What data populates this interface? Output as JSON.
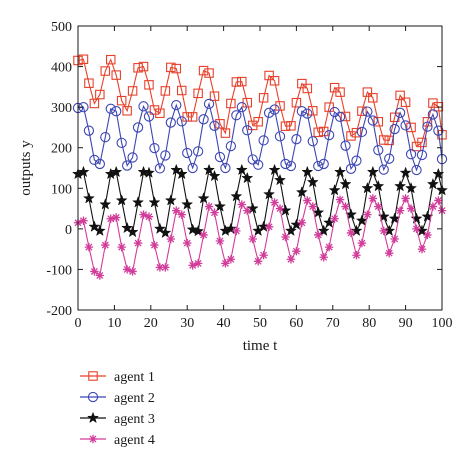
{
  "chart_data": {
    "type": "line",
    "title": "",
    "xlabel": "time t",
    "ylabel": "outputs y",
    "xlim": [
      0,
      100
    ],
    "ylim": [
      -200,
      500
    ],
    "x_ticks": [
      0,
      10,
      20,
      30,
      40,
      50,
      60,
      70,
      80,
      90,
      100
    ],
    "y_ticks": [
      -200,
      -100,
      0,
      100,
      200,
      300,
      400,
      500
    ],
    "grid": false,
    "legend_placement": "below-left",
    "series": [
      {
        "name": "agent 1",
        "color": "#e8402a",
        "marker": "square",
        "x": [
          0,
          1.5,
          3,
          4.5,
          6,
          7.5,
          9,
          10.5,
          12,
          13.5,
          15,
          16.5,
          18,
          19.5,
          21,
          22.5,
          24,
          25.5,
          27,
          28.5,
          30,
          31.5,
          33,
          34.5,
          36,
          37.5,
          39,
          40.5,
          42,
          43.5,
          45,
          46.5,
          48,
          49.5,
          51,
          52.5,
          54,
          55.5,
          57,
          58.5,
          60,
          61.5,
          63,
          64.5,
          66,
          67.5,
          69,
          70.5,
          72,
          73.5,
          75,
          76.5,
          78,
          79.5,
          81,
          82.5,
          84,
          85.5,
          87,
          88.5,
          90,
          91.5,
          93,
          94.5,
          96,
          97.5,
          99,
          100
        ],
        "y": [
          415,
          418,
          359,
          309,
          331,
          389,
          417,
          379,
          316,
          291,
          340,
          397,
          400,
          355,
          293,
          285,
          340,
          398,
          395,
          341,
          276,
          276,
          334,
          390,
          384,
          327,
          259,
          236,
          309,
          362,
          363,
          311,
          255,
          264,
          323,
          378,
          365,
          303,
          253,
          254,
          311,
          358,
          346,
          291,
          238,
          240,
          300,
          348,
          337,
          277,
          229,
          237,
          290,
          337,
          323,
          264,
          219,
          218,
          275,
          329,
          312,
          250,
          203,
          213,
          264,
          310,
          301,
          232
        ]
      },
      {
        "name": "agent 2",
        "color": "#3c46b4",
        "marker": "circle",
        "x": [
          0,
          1.5,
          3,
          4.5,
          6,
          7.5,
          9,
          10.5,
          12,
          13.5,
          15,
          16.5,
          18,
          19.5,
          21,
          22.5,
          24,
          25.5,
          27,
          28.5,
          30,
          31.5,
          33,
          34.5,
          36,
          37.5,
          39,
          40.5,
          42,
          43.5,
          45,
          46.5,
          48,
          49.5,
          51,
          52.5,
          54,
          55.5,
          57,
          58.5,
          60,
          61.5,
          63,
          64.5,
          66,
          67.5,
          69,
          70.5,
          72,
          73.5,
          75,
          76.5,
          78,
          79.5,
          81,
          82.5,
          84,
          85.5,
          87,
          88.5,
          90,
          91.5,
          93,
          94.5,
          96,
          97.5,
          99,
          100
        ],
        "y": [
          298,
          300,
          242,
          170,
          160,
          226,
          296,
          290,
          212,
          156,
          176,
          250,
          302,
          277,
          199,
          149,
          181,
          262,
          305,
          265,
          187,
          150,
          191,
          270,
          308,
          254,
          177,
          150,
          204,
          280,
          300,
          243,
          171,
          158,
          218,
          286,
          294,
          228,
          160,
          155,
          221,
          290,
          284,
          216,
          155,
          160,
          231,
          288,
          276,
          205,
          148,
          168,
          239,
          289,
          267,
          194,
          146,
          173,
          246,
          286,
          255,
          184,
          145,
          182,
          252,
          282,
          242,
          172
        ]
      },
      {
        "name": "agent 3",
        "color": "#111111",
        "marker": "star",
        "x": [
          0,
          1.5,
          3,
          4.5,
          6,
          7.5,
          9,
          10.5,
          12,
          13.5,
          15,
          16.5,
          18,
          19.5,
          21,
          22.5,
          24,
          25.5,
          27,
          28.5,
          30,
          31.5,
          33,
          34.5,
          36,
          37.5,
          39,
          40.5,
          42,
          43.5,
          45,
          46.5,
          48,
          49.5,
          51,
          52.5,
          54,
          55.5,
          57,
          58.5,
          60,
          61.5,
          63,
          64.5,
          66,
          67.5,
          69,
          70.5,
          72,
          73.5,
          75,
          76.5,
          78,
          79.5,
          81,
          82.5,
          84,
          85.5,
          87,
          88.5,
          90,
          91.5,
          93,
          94.5,
          96,
          97.5,
          99,
          100
        ],
        "y": [
          135,
          140,
          75,
          5,
          -5,
          60,
          135,
          140,
          70,
          2,
          -8,
          65,
          140,
          138,
          65,
          0,
          -10,
          70,
          145,
          135,
          60,
          -2,
          -6,
          75,
          145,
          130,
          55,
          -5,
          0,
          80,
          145,
          125,
          50,
          -5,
          5,
          85,
          145,
          120,
          45,
          -5,
          10,
          90,
          140,
          115,
          40,
          -5,
          15,
          95,
          140,
          110,
          35,
          -5,
          20,
          100,
          140,
          105,
          30,
          -5,
          25,
          105,
          138,
          100,
          25,
          -5,
          30,
          110,
          135,
          95
        ]
      },
      {
        "name": "agent 4",
        "color": "#d23c9a",
        "marker": "asterisk",
        "x": [
          0,
          1.5,
          3,
          4.5,
          6,
          7.5,
          9,
          10.5,
          12,
          13.5,
          15,
          16.5,
          18,
          19.5,
          21,
          22.5,
          24,
          25.5,
          27,
          28.5,
          30,
          31.5,
          33,
          34.5,
          36,
          37.5,
          39,
          40.5,
          42,
          43.5,
          45,
          46.5,
          48,
          49.5,
          51,
          52.5,
          54,
          55.5,
          57,
          58.5,
          60,
          61.5,
          63,
          64.5,
          66,
          67.5,
          69,
          70.5,
          72,
          73.5,
          75,
          76.5,
          78,
          79.5,
          81,
          82.5,
          84,
          85.5,
          87,
          88.5,
          90,
          91.5,
          93,
          94.5,
          96,
          97.5,
          99,
          100
        ],
        "y": [
          15,
          20,
          -45,
          -105,
          -115,
          -40,
          25,
          28,
          -45,
          -100,
          -105,
          -35,
          35,
          30,
          -40,
          -95,
          -95,
          -25,
          45,
          35,
          -35,
          -90,
          -85,
          -15,
          55,
          40,
          -30,
          -85,
          -75,
          -5,
          60,
          45,
          -25,
          -80,
          -65,
          5,
          65,
          50,
          -20,
          -75,
          -55,
          15,
          70,
          55,
          -15,
          -70,
          -45,
          25,
          72,
          55,
          -10,
          -65,
          -35,
          35,
          75,
          55,
          -5,
          -60,
          -25,
          45,
          75,
          50,
          0,
          -50,
          -15,
          55,
          70,
          45
        ]
      }
    ]
  }
}
